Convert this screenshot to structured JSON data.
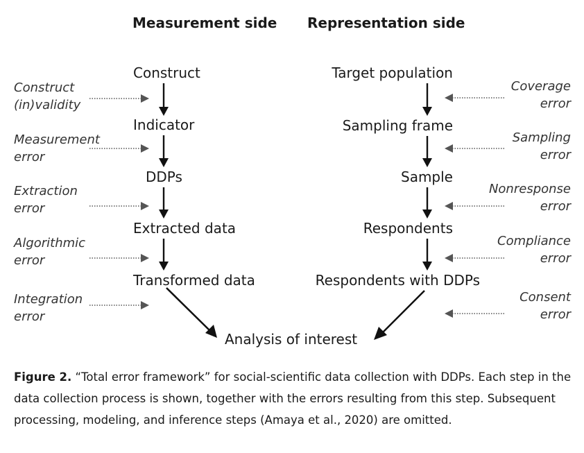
{
  "headings": {
    "measurement": "Measurement side",
    "representation": "Representation side"
  },
  "measurement": {
    "nodes": [
      "Construct",
      "Indicator",
      "DDPs",
      "Extracted data",
      "Transformed data"
    ],
    "errors": [
      [
        "Construct",
        "(in)validity"
      ],
      [
        "Measurement",
        "error"
      ],
      [
        "Extraction",
        "error"
      ],
      [
        "Algorithmic",
        "error"
      ],
      [
        "Integration",
        "error"
      ]
    ]
  },
  "representation": {
    "nodes": [
      "Target population",
      "Sampling frame",
      "Sample",
      "Respondents",
      "Respondents with DDPs"
    ],
    "errors": [
      [
        "Coverage",
        "error"
      ],
      [
        "Sampling",
        "error"
      ],
      [
        "Nonresponse",
        "error"
      ],
      [
        "Compliance",
        "error"
      ],
      [
        "Consent",
        "error"
      ]
    ]
  },
  "outcome": "Analysis of interest",
  "caption": {
    "label": "Figure 2.",
    "text": " “Total error framework” for social-scientific data collection with DDPs. Each step in the data collection process is shown, together with the errors resulting from this step. Subsequent processing, modeling, and inference steps (Amaya et al., 2020) are omitted."
  },
  "colors": {
    "text": "#1a1a1a",
    "error_text": "#333333",
    "arrow": "#111111",
    "dotted_arrow": "#555555"
  }
}
